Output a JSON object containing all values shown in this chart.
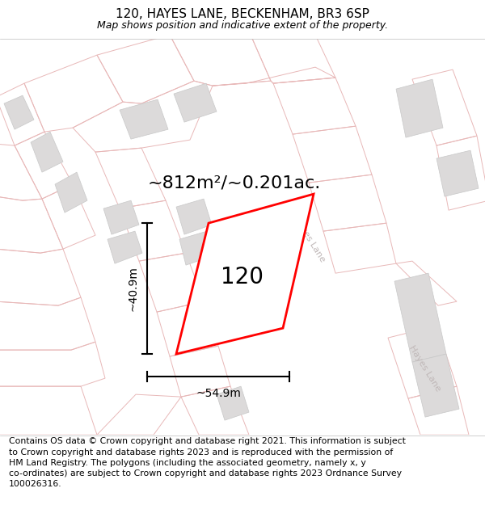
{
  "title": "120, HAYES LANE, BECKENHAM, BR3 6SP",
  "subtitle": "Map shows position and indicative extent of the property.",
  "area_text": "~812m²/~0.201ac.",
  "number_label": "120",
  "width_label": "~54.9m",
  "height_label": "~40.9m",
  "footer": "Contains OS data © Crown copyright and database right 2021. This information is subject\nto Crown copyright and database rights 2023 and is reproduced with the permission of\nHM Land Registry. The polygons (including the associated geometry, namely x, y\nco-ordinates) are subject to Crown copyright and database rights 2023 Ordnance Survey\n100026316.",
  "map_bg": "#f7f5f5",
  "plot_outline_color": "#e8b8b8",
  "building_fill": "#dcdada",
  "building_edge": "#c8c8c8",
  "road_label_color": "#c0b8b8",
  "title_fontsize": 11,
  "subtitle_fontsize": 9,
  "area_fontsize": 16,
  "number_fontsize": 20,
  "measure_fontsize": 10,
  "footer_fontsize": 7.8
}
